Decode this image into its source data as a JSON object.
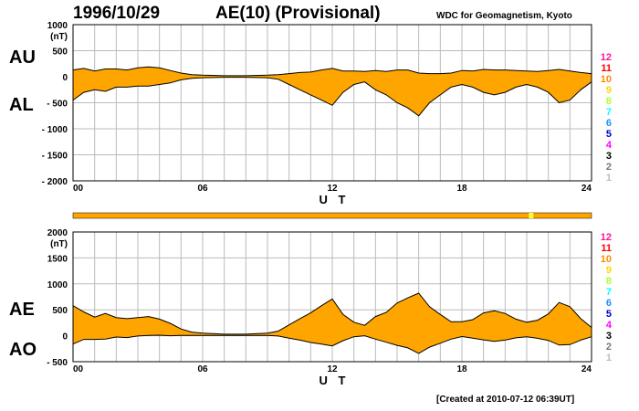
{
  "header": {
    "date": "1996/10/29",
    "title": "AE(10) (Provisional)",
    "source": "WDC for Geomagnetism, Kyoto"
  },
  "footer": {
    "created": "[Created at 2010-07-12 06:39UT]"
  },
  "colors": {
    "fill": "#ffa500",
    "line": "#000000",
    "grid": "#bbbbbb",
    "highlight": "#ffff33"
  },
  "legend": {
    "items": [
      {
        "label": "12",
        "color": "#ff1493"
      },
      {
        "label": "11",
        "color": "#ff0000"
      },
      {
        "label": "10",
        "color": "#ff8c00"
      },
      {
        "label": "9",
        "color": "#ffd700"
      },
      {
        "label": "8",
        "color": "#adff2f"
      },
      {
        "label": "7",
        "color": "#00ffff"
      },
      {
        "label": "6",
        "color": "#1e90ff"
      },
      {
        "label": "5",
        "color": "#0000cd"
      },
      {
        "label": "4",
        "color": "#ff00ff"
      },
      {
        "label": "3",
        "color": "#000000"
      },
      {
        "label": "2",
        "color": "#777777"
      },
      {
        "label": "1",
        "color": "#bbbbbb"
      }
    ]
  },
  "station_bar": {
    "color": "#ffa500",
    "highlight_hour": 21.1
  },
  "chart_data": [
    {
      "type": "area",
      "panel": "top",
      "labels": {
        "upper": "AU",
        "lower": "AL"
      },
      "unit": "(nT)",
      "xlabel": "U T",
      "x_ticks": [
        "00",
        "06",
        "12",
        "18",
        "24"
      ],
      "xlim": [
        0,
        24
      ],
      "ylim": [
        -2000,
        1000
      ],
      "y_ticks": [
        "1000",
        "500",
        "0",
        "- 500",
        "- 1000",
        "- 1500",
        "- 2000"
      ],
      "y_tick_values": [
        1000,
        500,
        0,
        -500,
        -1000,
        -1500,
        -2000
      ],
      "grid": true,
      "series": [
        {
          "name": "AU",
          "x": [
            0,
            0.5,
            1,
            1.5,
            2,
            2.5,
            3,
            3.5,
            4,
            4.5,
            5,
            5.5,
            6,
            7,
            8,
            9,
            9.5,
            10,
            10.5,
            11,
            11.5,
            12,
            12.5,
            13,
            13.5,
            14,
            14.5,
            15,
            15.5,
            16,
            16.5,
            17,
            17.5,
            18,
            18.5,
            19,
            19.5,
            20,
            20.5,
            21,
            21.5,
            22,
            22.5,
            23,
            23.5,
            24
          ],
          "values": [
            130,
            160,
            110,
            150,
            150,
            130,
            170,
            190,
            170,
            120,
            70,
            40,
            30,
            20,
            20,
            30,
            40,
            60,
            80,
            90,
            130,
            160,
            110,
            110,
            100,
            120,
            100,
            130,
            130,
            70,
            60,
            60,
            70,
            120,
            110,
            140,
            130,
            130,
            120,
            110,
            100,
            120,
            140,
            110,
            80,
            60
          ]
        },
        {
          "name": "AL",
          "x": [
            0,
            0.5,
            1,
            1.5,
            2,
            2.5,
            3,
            3.5,
            4,
            4.5,
            5,
            5.5,
            6,
            7,
            8,
            9,
            9.5,
            10,
            10.5,
            11,
            11.5,
            12,
            12.5,
            13,
            13.5,
            14,
            14.5,
            15,
            15.5,
            16,
            16.5,
            17,
            17.5,
            18,
            18.5,
            19,
            19.5,
            20,
            20.5,
            21,
            21.5,
            22,
            22.5,
            23,
            23.5,
            24
          ],
          "values": [
            -450,
            -300,
            -250,
            -280,
            -200,
            -200,
            -180,
            -180,
            -150,
            -120,
            -60,
            -30,
            -20,
            -10,
            -10,
            -20,
            -50,
            -150,
            -250,
            -350,
            -450,
            -550,
            -300,
            -150,
            -100,
            -250,
            -350,
            -500,
            -600,
            -750,
            -500,
            -350,
            -200,
            -150,
            -200,
            -300,
            -350,
            -300,
            -200,
            -150,
            -200,
            -300,
            -500,
            -450,
            -250,
            -100
          ]
        }
      ]
    },
    {
      "type": "area",
      "panel": "bottom",
      "labels": {
        "upper": "AE",
        "lower": "AO"
      },
      "unit": "(nT)",
      "xlabel": "U T",
      "x_ticks": [
        "00",
        "06",
        "12",
        "18",
        "24"
      ],
      "xlim": [
        0,
        24
      ],
      "ylim": [
        -500,
        2000
      ],
      "y_ticks": [
        "2000",
        "1500",
        "1000",
        "500",
        "0",
        "- 500"
      ],
      "y_tick_values": [
        2000,
        1500,
        1000,
        500,
        0,
        -500
      ],
      "grid": true,
      "series": [
        {
          "name": "AE",
          "x": [
            0,
            0.5,
            1,
            1.5,
            2,
            2.5,
            3,
            3.5,
            4,
            4.5,
            5,
            5.5,
            6,
            7,
            8,
            9,
            9.5,
            10,
            10.5,
            11,
            11.5,
            12,
            12.5,
            13,
            13.5,
            14,
            14.5,
            15,
            15.5,
            16,
            16.5,
            17,
            17.5,
            18,
            18.5,
            19,
            19.5,
            20,
            20.5,
            21,
            21.5,
            22,
            22.5,
            23,
            23.5,
            24
          ],
          "values": [
            580,
            460,
            360,
            430,
            350,
            330,
            350,
            370,
            320,
            240,
            130,
            70,
            50,
            30,
            30,
            50,
            90,
            210,
            330,
            440,
            580,
            710,
            410,
            260,
            200,
            370,
            450,
            630,
            730,
            820,
            560,
            410,
            270,
            270,
            310,
            440,
            480,
            430,
            320,
            260,
            300,
            420,
            640,
            560,
            330,
            160
          ]
        },
        {
          "name": "AO",
          "x": [
            0,
            0.5,
            1,
            1.5,
            2,
            2.5,
            3,
            3.5,
            4,
            4.5,
            5,
            5.5,
            6,
            7,
            8,
            9,
            9.5,
            10,
            10.5,
            11,
            11.5,
            12,
            12.5,
            13,
            13.5,
            14,
            14.5,
            15,
            15.5,
            16,
            16.5,
            17,
            17.5,
            18,
            18.5,
            19,
            19.5,
            20,
            20.5,
            21,
            21.5,
            22,
            22.5,
            23,
            23.5,
            24
          ],
          "values": [
            -160,
            -70,
            -70,
            -65,
            -25,
            -35,
            -5,
            5,
            10,
            0,
            5,
            5,
            5,
            5,
            5,
            5,
            -5,
            -45,
            -85,
            -130,
            -160,
            -195,
            -95,
            -20,
            0,
            -65,
            -125,
            -185,
            -235,
            -340,
            -220,
            -145,
            -65,
            -15,
            -45,
            -80,
            -110,
            -85,
            -40,
            -20,
            -50,
            -90,
            -180,
            -170,
            -85,
            -20
          ]
        }
      ]
    }
  ]
}
